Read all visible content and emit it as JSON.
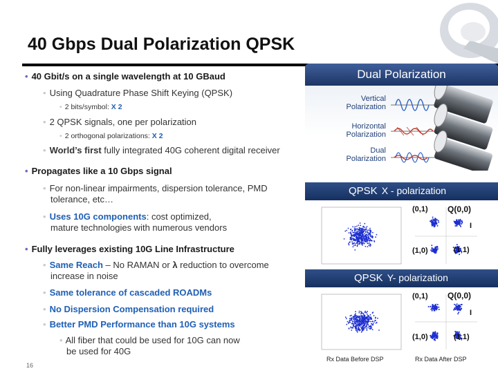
{
  "slide": {
    "title": "40 Gbps Dual Polarization QPSK",
    "page_number": "16",
    "logo_icon": "nortel-globe-icon"
  },
  "bullets": {
    "b1": "40 Gbit/s on a single wavelength at 10 GBaud",
    "b1a": "Using Quadrature Phase Shift Keying (QPSK)",
    "b1a1_text": "2 bits/symbol: ",
    "b1a1_mult": "X 2",
    "b1b": "2 QPSK signals, one per polarization",
    "b1b1_text": "2 orthogonal polarizations: ",
    "b1b1_mult": "X 2",
    "b1c_a": "World’s first",
    "b1c_b": " fully integrated 40G coherent digital receiver",
    "b2": "Propagates like a 10 Gbps signal",
    "b2a_1": "For non-linear impairments, dispersion tolerance, PMD",
    "b2a_2": "tolerance, etc…",
    "b2b_a": "Uses 10G components",
    "b2b_b": ": cost optimized,",
    "b2b_2": "mature technologies with numerous vendors",
    "b3": "Fully leverages existing 10G Line Infrastructure",
    "b3a_a": "Same Reach",
    "b3a_b": " – No RAMAN or ",
    "b3a_lambda": "λ",
    "b3a_c": " reduction to overcome",
    "b3a_2": "increase in noise",
    "b3b": "Same tolerance of cascaded ROADMs",
    "b3c": "No Dispersion Compensation required",
    "b3d": "Better PMD Performance than 10G systems",
    "b3d1_1": "All fiber that could be used for 10G can now",
    "b3d1_2": "be used for 40G"
  },
  "dual_polarization": {
    "title": "Dual Polarization",
    "vertical": [
      "Vertical",
      "Polarization"
    ],
    "horizontal": [
      "Horizontal",
      "Polarization"
    ],
    "dual": [
      "Dual",
      "Polarization"
    ]
  },
  "qpsk_x": {
    "label_a": "QPSK",
    "label_b": "X - polarization",
    "p01": "(0,1)",
    "q": "Q",
    "p00": "(0,0)",
    "p10": "(1,0)",
    "p11": "(1,1)",
    "i": "I"
  },
  "qpsk_y": {
    "label_a": "QPSK",
    "label_b": "Y- polarization",
    "p01": "(0,1)",
    "q": "Q",
    "p00": "(0,0)",
    "p10": "(1,0)",
    "p11": "(1,1)",
    "i": "I"
  },
  "rx": {
    "before": "Rx Data Before DSP",
    "after": "Rx Data After DSP"
  },
  "colors": {
    "accent_blue": "#1f5fb4",
    "band_dark": "#16305f",
    "dot_blue": "#1d2fd0"
  }
}
